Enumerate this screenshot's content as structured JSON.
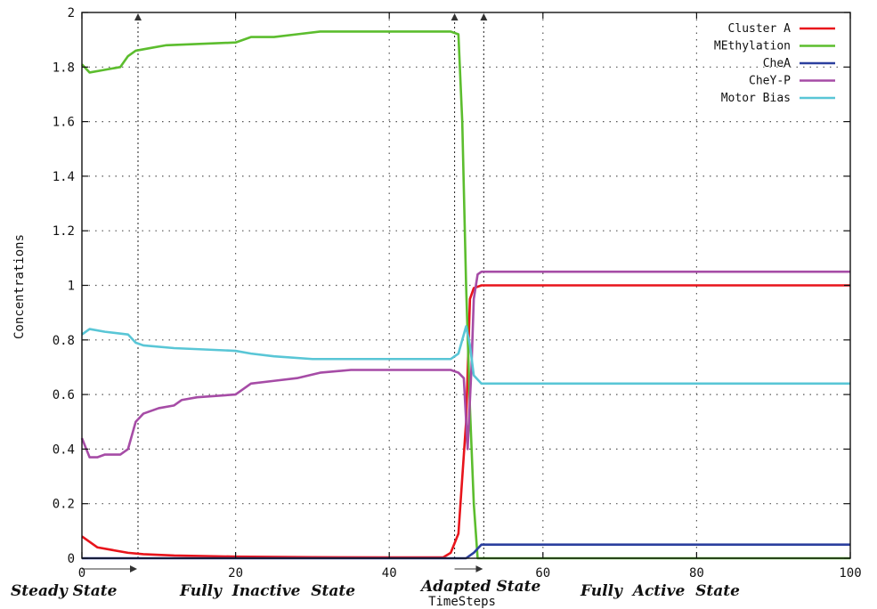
{
  "chart_data": {
    "type": "line",
    "title": "",
    "xlabel": "TimeSteps",
    "ylabel": "Concentrations",
    "xlim": [
      0,
      100
    ],
    "ylim": [
      0,
      2
    ],
    "x_ticks": [
      0,
      20,
      40,
      60,
      80,
      100
    ],
    "y_ticks": [
      0,
      0.2,
      0.4,
      0.6,
      0.8,
      1,
      1.2,
      1.4,
      1.6,
      1.8,
      2
    ],
    "x_tick_labels": [
      "0",
      "20",
      "40",
      "60",
      "80",
      "100"
    ],
    "y_tick_labels": [
      "0",
      "0.2",
      "0.4",
      "0.6",
      "0.8",
      "1",
      "1.2",
      "1.4",
      "1.6",
      "1.8",
      "2"
    ],
    "grid": true,
    "legend_position": "top-right",
    "series": [
      {
        "name": "Cluster A",
        "color": "#e8141b",
        "points": [
          [
            0,
            0.08
          ],
          [
            1,
            0.06
          ],
          [
            2,
            0.04
          ],
          [
            4,
            0.03
          ],
          [
            6,
            0.02
          ],
          [
            8,
            0.015
          ],
          [
            12,
            0.01
          ],
          [
            20,
            0.006
          ],
          [
            30,
            0.004
          ],
          [
            40,
            0.003
          ],
          [
            47,
            0.003
          ],
          [
            48,
            0.02
          ],
          [
            49,
            0.09
          ],
          [
            50,
            0.5
          ],
          [
            50.5,
            0.95
          ],
          [
            51,
            0.99
          ],
          [
            52,
            1.0
          ],
          [
            100,
            1.0
          ]
        ]
      },
      {
        "name": "MEthylation",
        "color": "#5cbd2e",
        "points": [
          [
            0,
            1.81
          ],
          [
            1,
            1.78
          ],
          [
            3,
            1.79
          ],
          [
            5,
            1.8
          ],
          [
            6,
            1.84
          ],
          [
            7,
            1.86
          ],
          [
            9,
            1.87
          ],
          [
            11,
            1.88
          ],
          [
            20,
            1.89
          ],
          [
            22,
            1.91
          ],
          [
            25,
            1.91
          ],
          [
            28,
            1.92
          ],
          [
            31,
            1.93
          ],
          [
            38,
            1.93
          ],
          [
            45,
            1.93
          ],
          [
            48,
            1.93
          ],
          [
            49,
            1.92
          ],
          [
            49.5,
            1.6
          ],
          [
            50,
            1.0
          ],
          [
            50.5,
            0.55
          ],
          [
            51,
            0.2
          ],
          [
            51.5,
            0.0
          ],
          [
            100,
            0.0
          ]
        ]
      },
      {
        "name": "CheA",
        "color": "#2b3f9e",
        "points": [
          [
            0,
            0.0
          ],
          [
            50,
            0.0
          ],
          [
            51,
            0.02
          ],
          [
            52,
            0.05
          ],
          [
            100,
            0.05
          ]
        ]
      },
      {
        "name": "CheY-P",
        "color": "#a64ca6",
        "points": [
          [
            0,
            0.44
          ],
          [
            1,
            0.37
          ],
          [
            2,
            0.37
          ],
          [
            3,
            0.38
          ],
          [
            5,
            0.38
          ],
          [
            6,
            0.4
          ],
          [
            7,
            0.5
          ],
          [
            8,
            0.53
          ],
          [
            10,
            0.55
          ],
          [
            12,
            0.56
          ],
          [
            13,
            0.58
          ],
          [
            15,
            0.59
          ],
          [
            20,
            0.6
          ],
          [
            21,
            0.62
          ],
          [
            22,
            0.64
          ],
          [
            25,
            0.65
          ],
          [
            28,
            0.66
          ],
          [
            31,
            0.68
          ],
          [
            35,
            0.69
          ],
          [
            40,
            0.69
          ],
          [
            48,
            0.69
          ],
          [
            49,
            0.68
          ],
          [
            49.7,
            0.66
          ],
          [
            50.2,
            0.4
          ],
          [
            50.7,
            0.7
          ],
          [
            51,
            0.95
          ],
          [
            51.5,
            1.04
          ],
          [
            52,
            1.05
          ],
          [
            100,
            1.05
          ]
        ]
      },
      {
        "name": "Motor Bias",
        "color": "#59c6d6",
        "points": [
          [
            0,
            0.82
          ],
          [
            1,
            0.84
          ],
          [
            3,
            0.83
          ],
          [
            6,
            0.82
          ],
          [
            7,
            0.79
          ],
          [
            8,
            0.78
          ],
          [
            12,
            0.77
          ],
          [
            20,
            0.76
          ],
          [
            22,
            0.75
          ],
          [
            25,
            0.74
          ],
          [
            30,
            0.73
          ],
          [
            35,
            0.73
          ],
          [
            40,
            0.73
          ],
          [
            48,
            0.73
          ],
          [
            49,
            0.75
          ],
          [
            50,
            0.85
          ],
          [
            50.5,
            0.78
          ],
          [
            51,
            0.67
          ],
          [
            52,
            0.64
          ],
          [
            100,
            0.64
          ]
        ]
      }
    ],
    "phase_markers_x": [
      7.3,
      48.5,
      52.3
    ],
    "phase_labels": [
      "Steady State",
      "Fully  Inactive  State",
      "Adapted State",
      "Fully  Active  State"
    ]
  }
}
